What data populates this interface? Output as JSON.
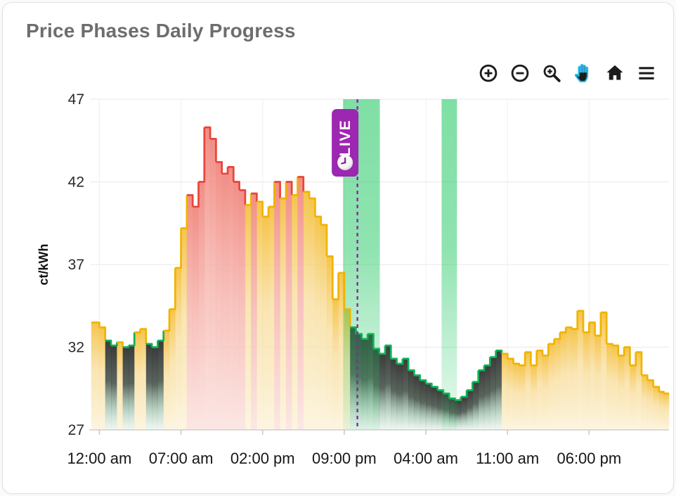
{
  "header": {
    "title": "Price Phases Daily Progress"
  },
  "toolbar": {
    "active_tool": "pan",
    "accent_color": "#29b5e8",
    "icon_color": "#1c1c1c",
    "buttons": [
      {
        "id": "zoom-in",
        "icon": "plus-circle-icon"
      },
      {
        "id": "zoom-out",
        "icon": "minus-circle-icon"
      },
      {
        "id": "box-zoom",
        "icon": "magnifier-plus-icon"
      },
      {
        "id": "pan",
        "icon": "hand-icon"
      },
      {
        "id": "reset-view",
        "icon": "home-icon"
      },
      {
        "id": "menu",
        "icon": "hamburger-icon"
      }
    ]
  },
  "chart_data": {
    "type": "step-area",
    "title": "Price Phases Daily Progress",
    "ylabel": "ct/kWh",
    "grid": true,
    "legend": false,
    "step_hours": 0.5,
    "y_axis": {
      "range": [
        27,
        47
      ],
      "ticks": [
        27,
        32,
        37,
        42,
        47
      ]
    },
    "x_axis": {
      "range": [
        -0.75,
        48.85
      ],
      "ticks": [
        {
          "t": 0,
          "label": "12:00 am"
        },
        {
          "t": 7,
          "label": "07:00 am"
        },
        {
          "t": 14,
          "label": "02:00 pm"
        },
        {
          "t": 21,
          "label": "09:00 pm"
        },
        {
          "t": 28,
          "label": "04:00 am"
        },
        {
          "t": 35,
          "label": "11:00 am"
        },
        {
          "t": 42,
          "label": "06:00 pm"
        }
      ]
    },
    "phases": {
      "y": {
        "name": "normal",
        "line": "#f0b400",
        "fill": [
          [
            0,
            "#f5c141",
            0.95
          ],
          [
            45,
            "#f8dd9b",
            0.75
          ],
          [
            100,
            "#fcf4de",
            0.9
          ]
        ]
      },
      "r": {
        "name": "expensive",
        "line": "#e8453a",
        "fill": [
          [
            0,
            "#f0887f",
            0.95
          ],
          [
            50,
            "#f6b3ac",
            0.8
          ],
          [
            100,
            "#fbe3e0",
            0.85
          ]
        ]
      },
      "g": {
        "name": "cheap",
        "line": "#10b255",
        "fill": [
          [
            0,
            "#333333",
            0.96
          ],
          [
            45,
            "#3d4a41",
            0.85
          ],
          [
            75,
            "#6f9f82",
            0.5
          ],
          [
            100,
            "#cfeadb",
            0.35
          ]
        ]
      }
    },
    "highlight_bands": [
      {
        "t0": 20.9,
        "t1": 24.05,
        "color": "#16c55a"
      },
      {
        "t0": 29.35,
        "t1": 30.67,
        "color": "#16c55a"
      }
    ],
    "live_marker": {
      "t": 22.13,
      "label": "LIVE",
      "color": "#9c27b0",
      "line_color": "#8e24aa"
    },
    "series": [
      [
        -0.7,
        33.5,
        "y"
      ],
      [
        0,
        33.2,
        "y"
      ],
      [
        0.5,
        32.4,
        "g"
      ],
      [
        1,
        32.1,
        "g"
      ],
      [
        1.5,
        32.3,
        "y"
      ],
      [
        2,
        32.0,
        "g"
      ],
      [
        2.5,
        32.1,
        "g"
      ],
      [
        3,
        32.9,
        "y"
      ],
      [
        3.5,
        33.1,
        "y"
      ],
      [
        4,
        32.2,
        "g"
      ],
      [
        4.5,
        32.0,
        "g"
      ],
      [
        5,
        32.4,
        "g"
      ],
      [
        5.5,
        33.0,
        "y"
      ],
      [
        6,
        34.3,
        "y"
      ],
      [
        6.5,
        36.8,
        "y"
      ],
      [
        7,
        39.2,
        "y"
      ],
      [
        7.5,
        41.2,
        "r"
      ],
      [
        8,
        40.5,
        "r"
      ],
      [
        8.5,
        42.0,
        "r"
      ],
      [
        9,
        45.3,
        "r"
      ],
      [
        9.5,
        44.6,
        "r"
      ],
      [
        10,
        43.2,
        "r"
      ],
      [
        10.5,
        42.5,
        "r"
      ],
      [
        11,
        42.9,
        "r"
      ],
      [
        11.5,
        42.0,
        "r"
      ],
      [
        12,
        41.5,
        "r"
      ],
      [
        12.5,
        40.6,
        "y"
      ],
      [
        13,
        41.3,
        "r"
      ],
      [
        13.5,
        40.8,
        "y"
      ],
      [
        14,
        39.9,
        "y"
      ],
      [
        14.5,
        40.5,
        "y"
      ],
      [
        15,
        42.0,
        "r"
      ],
      [
        15.5,
        41.0,
        "y"
      ],
      [
        16,
        42.0,
        "r"
      ],
      [
        16.5,
        41.2,
        "y"
      ],
      [
        17,
        42.3,
        "r"
      ],
      [
        17.5,
        41.4,
        "y"
      ],
      [
        18,
        41.0,
        "y"
      ],
      [
        18.5,
        39.9,
        "y"
      ],
      [
        19,
        39.4,
        "y"
      ],
      [
        19.5,
        37.5,
        "y"
      ],
      [
        20,
        34.9,
        "y"
      ],
      [
        20.5,
        36.5,
        "y"
      ],
      [
        21,
        34.3,
        "y"
      ],
      [
        21.5,
        33.2,
        "g"
      ],
      [
        22,
        32.8,
        "g"
      ],
      [
        22.5,
        32.5,
        "g"
      ],
      [
        23,
        32.8,
        "g"
      ],
      [
        23.5,
        31.9,
        "g"
      ],
      [
        24,
        31.6,
        "g"
      ],
      [
        24.5,
        32.1,
        "g"
      ],
      [
        25,
        31.3,
        "g"
      ],
      [
        25.5,
        31.0,
        "g"
      ],
      [
        26,
        31.3,
        "g"
      ],
      [
        26.5,
        30.6,
        "g"
      ],
      [
        27,
        30.3,
        "g"
      ],
      [
        27.5,
        30.0,
        "g"
      ],
      [
        28,
        29.8,
        "g"
      ],
      [
        28.5,
        29.6,
        "g"
      ],
      [
        29,
        29.4,
        "g"
      ],
      [
        29.5,
        29.2,
        "g"
      ],
      [
        30,
        28.9,
        "g"
      ],
      [
        30.5,
        28.8,
        "g"
      ],
      [
        31,
        29.0,
        "g"
      ],
      [
        31.5,
        29.4,
        "g"
      ],
      [
        32,
        29.9,
        "g"
      ],
      [
        32.5,
        30.6,
        "g"
      ],
      [
        33,
        30.9,
        "g"
      ],
      [
        33.5,
        31.4,
        "g"
      ],
      [
        34,
        31.8,
        "g"
      ],
      [
        34.5,
        31.6,
        "y"
      ],
      [
        35,
        31.3,
        "y"
      ],
      [
        35.5,
        31.0,
        "y"
      ],
      [
        36,
        30.9,
        "y"
      ],
      [
        36.5,
        31.7,
        "y"
      ],
      [
        37,
        30.9,
        "y"
      ],
      [
        37.5,
        31.8,
        "y"
      ],
      [
        38,
        31.5,
        "y"
      ],
      [
        38.5,
        32.2,
        "y"
      ],
      [
        39,
        32.5,
        "y"
      ],
      [
        39.5,
        32.9,
        "y"
      ],
      [
        40,
        33.2,
        "y"
      ],
      [
        40.5,
        33.1,
        "y"
      ],
      [
        41,
        34.2,
        "y"
      ],
      [
        41.5,
        32.9,
        "y"
      ],
      [
        42,
        33.5,
        "y"
      ],
      [
        42.5,
        32.7,
        "y"
      ],
      [
        43,
        34.1,
        "y"
      ],
      [
        43.5,
        32.2,
        "y"
      ],
      [
        44,
        32.1,
        "y"
      ],
      [
        44.5,
        31.5,
        "y"
      ],
      [
        45,
        32.0,
        "y"
      ],
      [
        45.5,
        30.9,
        "y"
      ],
      [
        46,
        31.7,
        "y"
      ],
      [
        46.5,
        30.3,
        "y"
      ],
      [
        47,
        30.0,
        "y"
      ],
      [
        47.5,
        29.6,
        "y"
      ],
      [
        48,
        29.3,
        "y"
      ],
      [
        48.4,
        29.2,
        "y"
      ]
    ]
  }
}
